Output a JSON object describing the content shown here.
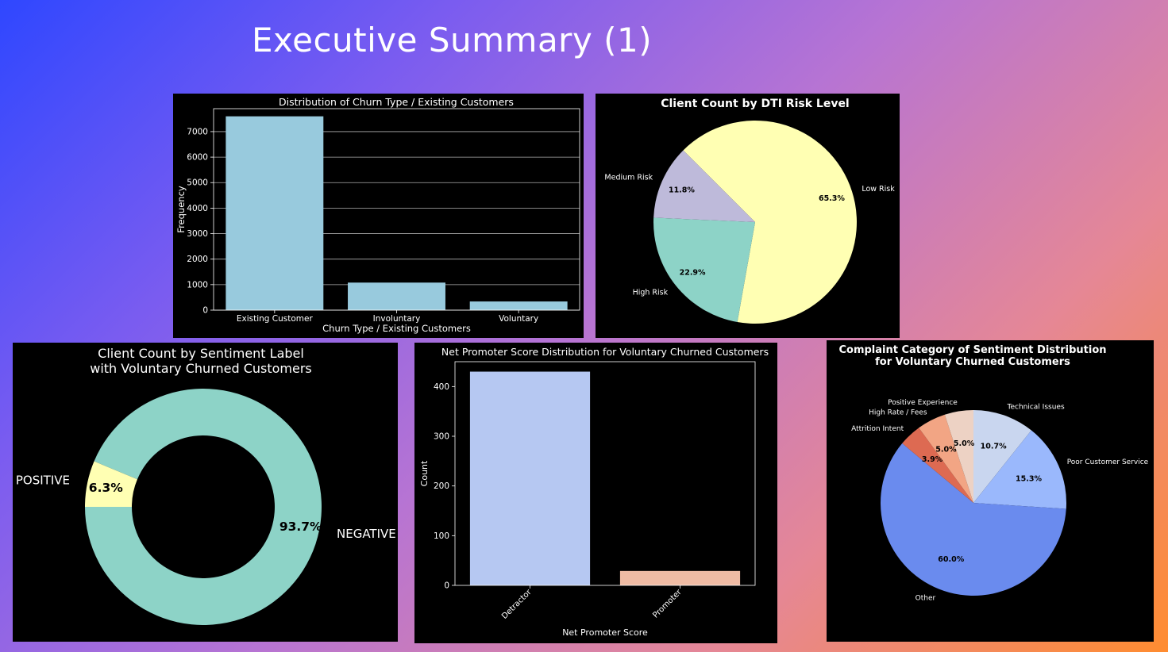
{
  "slide": {
    "title": "Executive Summary (1)"
  },
  "chart_data": [
    {
      "type": "bar",
      "title": "Distribution of Churn Type / Existing Customers",
      "xlabel": "Churn Type / Existing Customers",
      "ylabel": "Frequency",
      "categories": [
        "Existing Customer",
        "Involuntary",
        "Voluntary"
      ],
      "values": [
        7600,
        1080,
        340
      ],
      "ylim": [
        0,
        7900
      ],
      "yticks": [
        0,
        1000,
        2000,
        3000,
        4000,
        5000,
        6000,
        7000
      ],
      "grid": true,
      "color": "#98cadd"
    },
    {
      "type": "pie",
      "title": "Client Count by DTI Risk Level",
      "labels": [
        "Low Risk",
        "High Risk",
        "Medium Risk"
      ],
      "values": [
        65.3,
        22.9,
        11.8
      ],
      "pct_labels": [
        "65.3%",
        "22.9%",
        "11.8%"
      ],
      "colors": [
        "#ffffb3",
        "#8dd3c7",
        "#bebada"
      ]
    },
    {
      "type": "pie",
      "title": "Client Count by Sentiment Label\nwith Voluntary Churned Customers",
      "labels": [
        "NEGATIVE",
        "POSITIVE"
      ],
      "values": [
        93.7,
        6.3
      ],
      "pct_labels": [
        "93.7%",
        "6.3%"
      ],
      "colors": [
        "#8dd3c7",
        "#ffffb3"
      ],
      "donut": true
    },
    {
      "type": "bar",
      "title": "Net Promoter Score Distribution for Voluntary Churned Customers",
      "xlabel": "Net Promoter Score",
      "ylabel": "Count",
      "categories": [
        "Detractor",
        "Promoter"
      ],
      "values": [
        430,
        29
      ],
      "ylim": [
        0,
        450
      ],
      "yticks": [
        0,
        100,
        200,
        300,
        400
      ],
      "colors": [
        "#b6c8f2",
        "#efbba4"
      ]
    },
    {
      "type": "pie",
      "title": "Complaint Category of Sentiment Distribution\nfor Voluntary Churned Customers",
      "labels": [
        "Technical Issues",
        "Poor Customer Service",
        "Other",
        "Attrition Intent",
        "High Rate / Fees",
        "Positive Experience"
      ],
      "values": [
        10.7,
        15.3,
        60.0,
        3.9,
        5.0,
        5.0
      ],
      "pct_labels": [
        "10.7%",
        "15.3%",
        "60.0%",
        "3.9%",
        "5.0%",
        "5.0%"
      ],
      "colors": [
        "#c9d6ef",
        "#9ab8fc",
        "#6a8bee",
        "#dd6a52",
        "#f2a584",
        "#edd2c4"
      ]
    }
  ]
}
